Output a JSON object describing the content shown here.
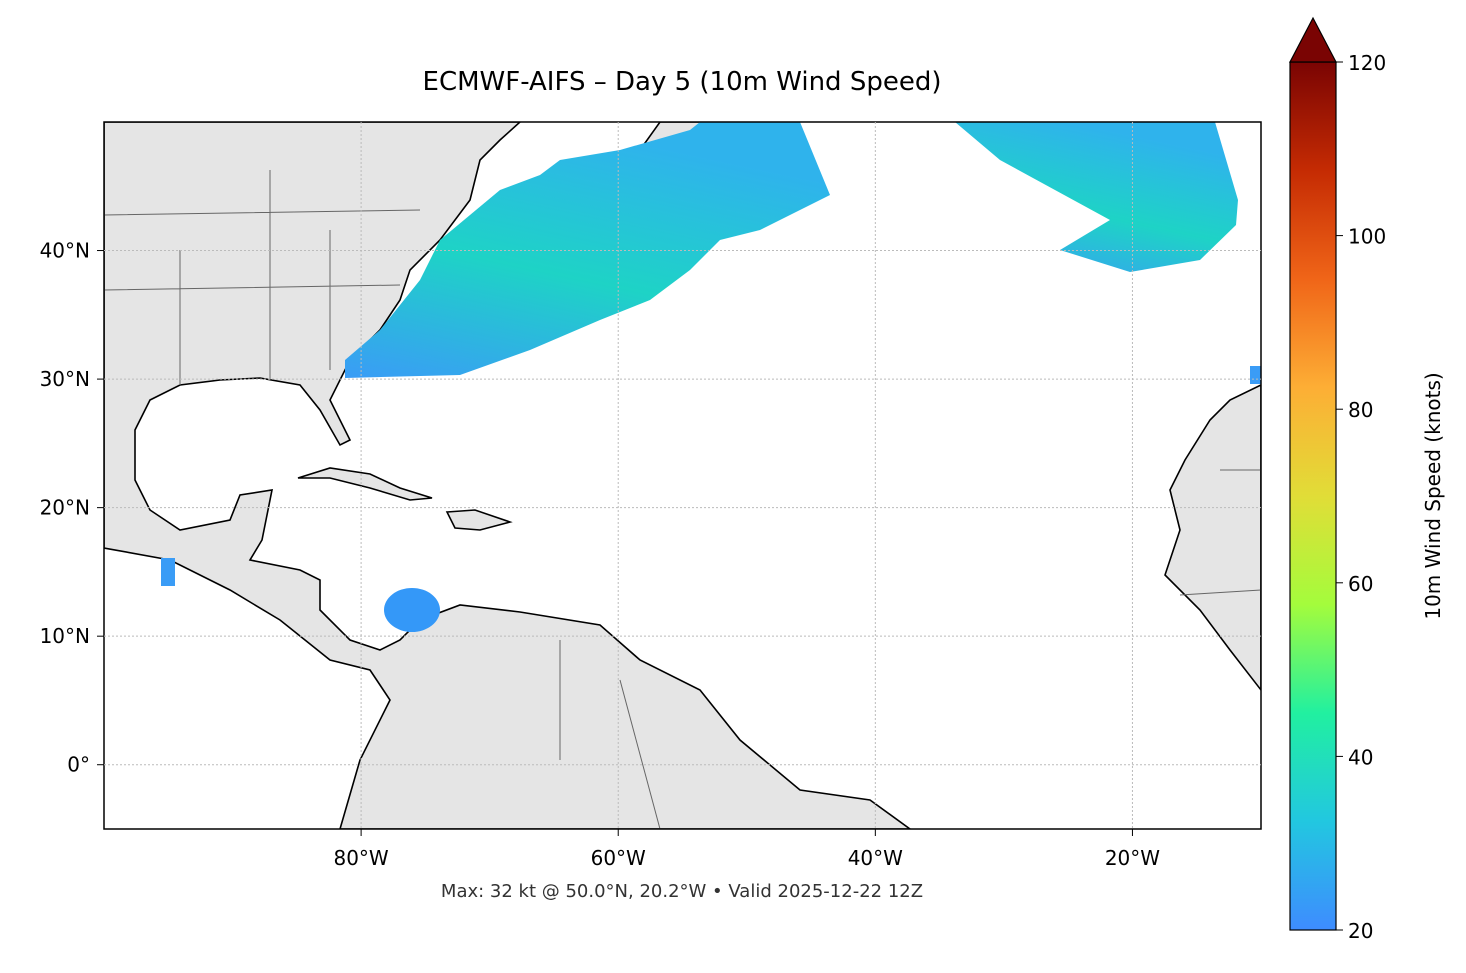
{
  "chart_data": {
    "type": "map",
    "title": "ECMWF-AIFS – Day 5 (10m Wind Speed)",
    "footnote": "Max: 32 kt @ 50.0°N, 20.2°W • Valid 2025-12-22 12Z",
    "xlim": [
      -100,
      -10
    ],
    "ylim": [
      -5,
      50
    ],
    "xticks": [
      {
        "value": -80,
        "label": "80°W"
      },
      {
        "value": -60,
        "label": "60°W"
      },
      {
        "value": -40,
        "label": "40°W"
      },
      {
        "value": -20,
        "label": "20°W"
      }
    ],
    "yticks": [
      {
        "value": 0,
        "label": "0°"
      },
      {
        "value": 10,
        "label": "10°N"
      },
      {
        "value": 20,
        "label": "20°N"
      },
      {
        "value": 30,
        "label": "30°N"
      },
      {
        "value": 40,
        "label": "40°N"
      }
    ],
    "grid": true,
    "land_color": "#e5e5e5",
    "colorbar": {
      "label": "10m Wind Speed (knots)",
      "lim": [
        20,
        120
      ],
      "ticks": [
        20,
        40,
        60,
        80,
        100,
        120
      ],
      "colors": [
        "#3e8cff",
        "#22c7e0",
        "#21f0a0",
        "#a4fc3c",
        "#e1dd37",
        "#fdae35",
        "#f06518",
        "#c52b03",
        "#7a0403"
      ],
      "extend": "max"
    }
  }
}
